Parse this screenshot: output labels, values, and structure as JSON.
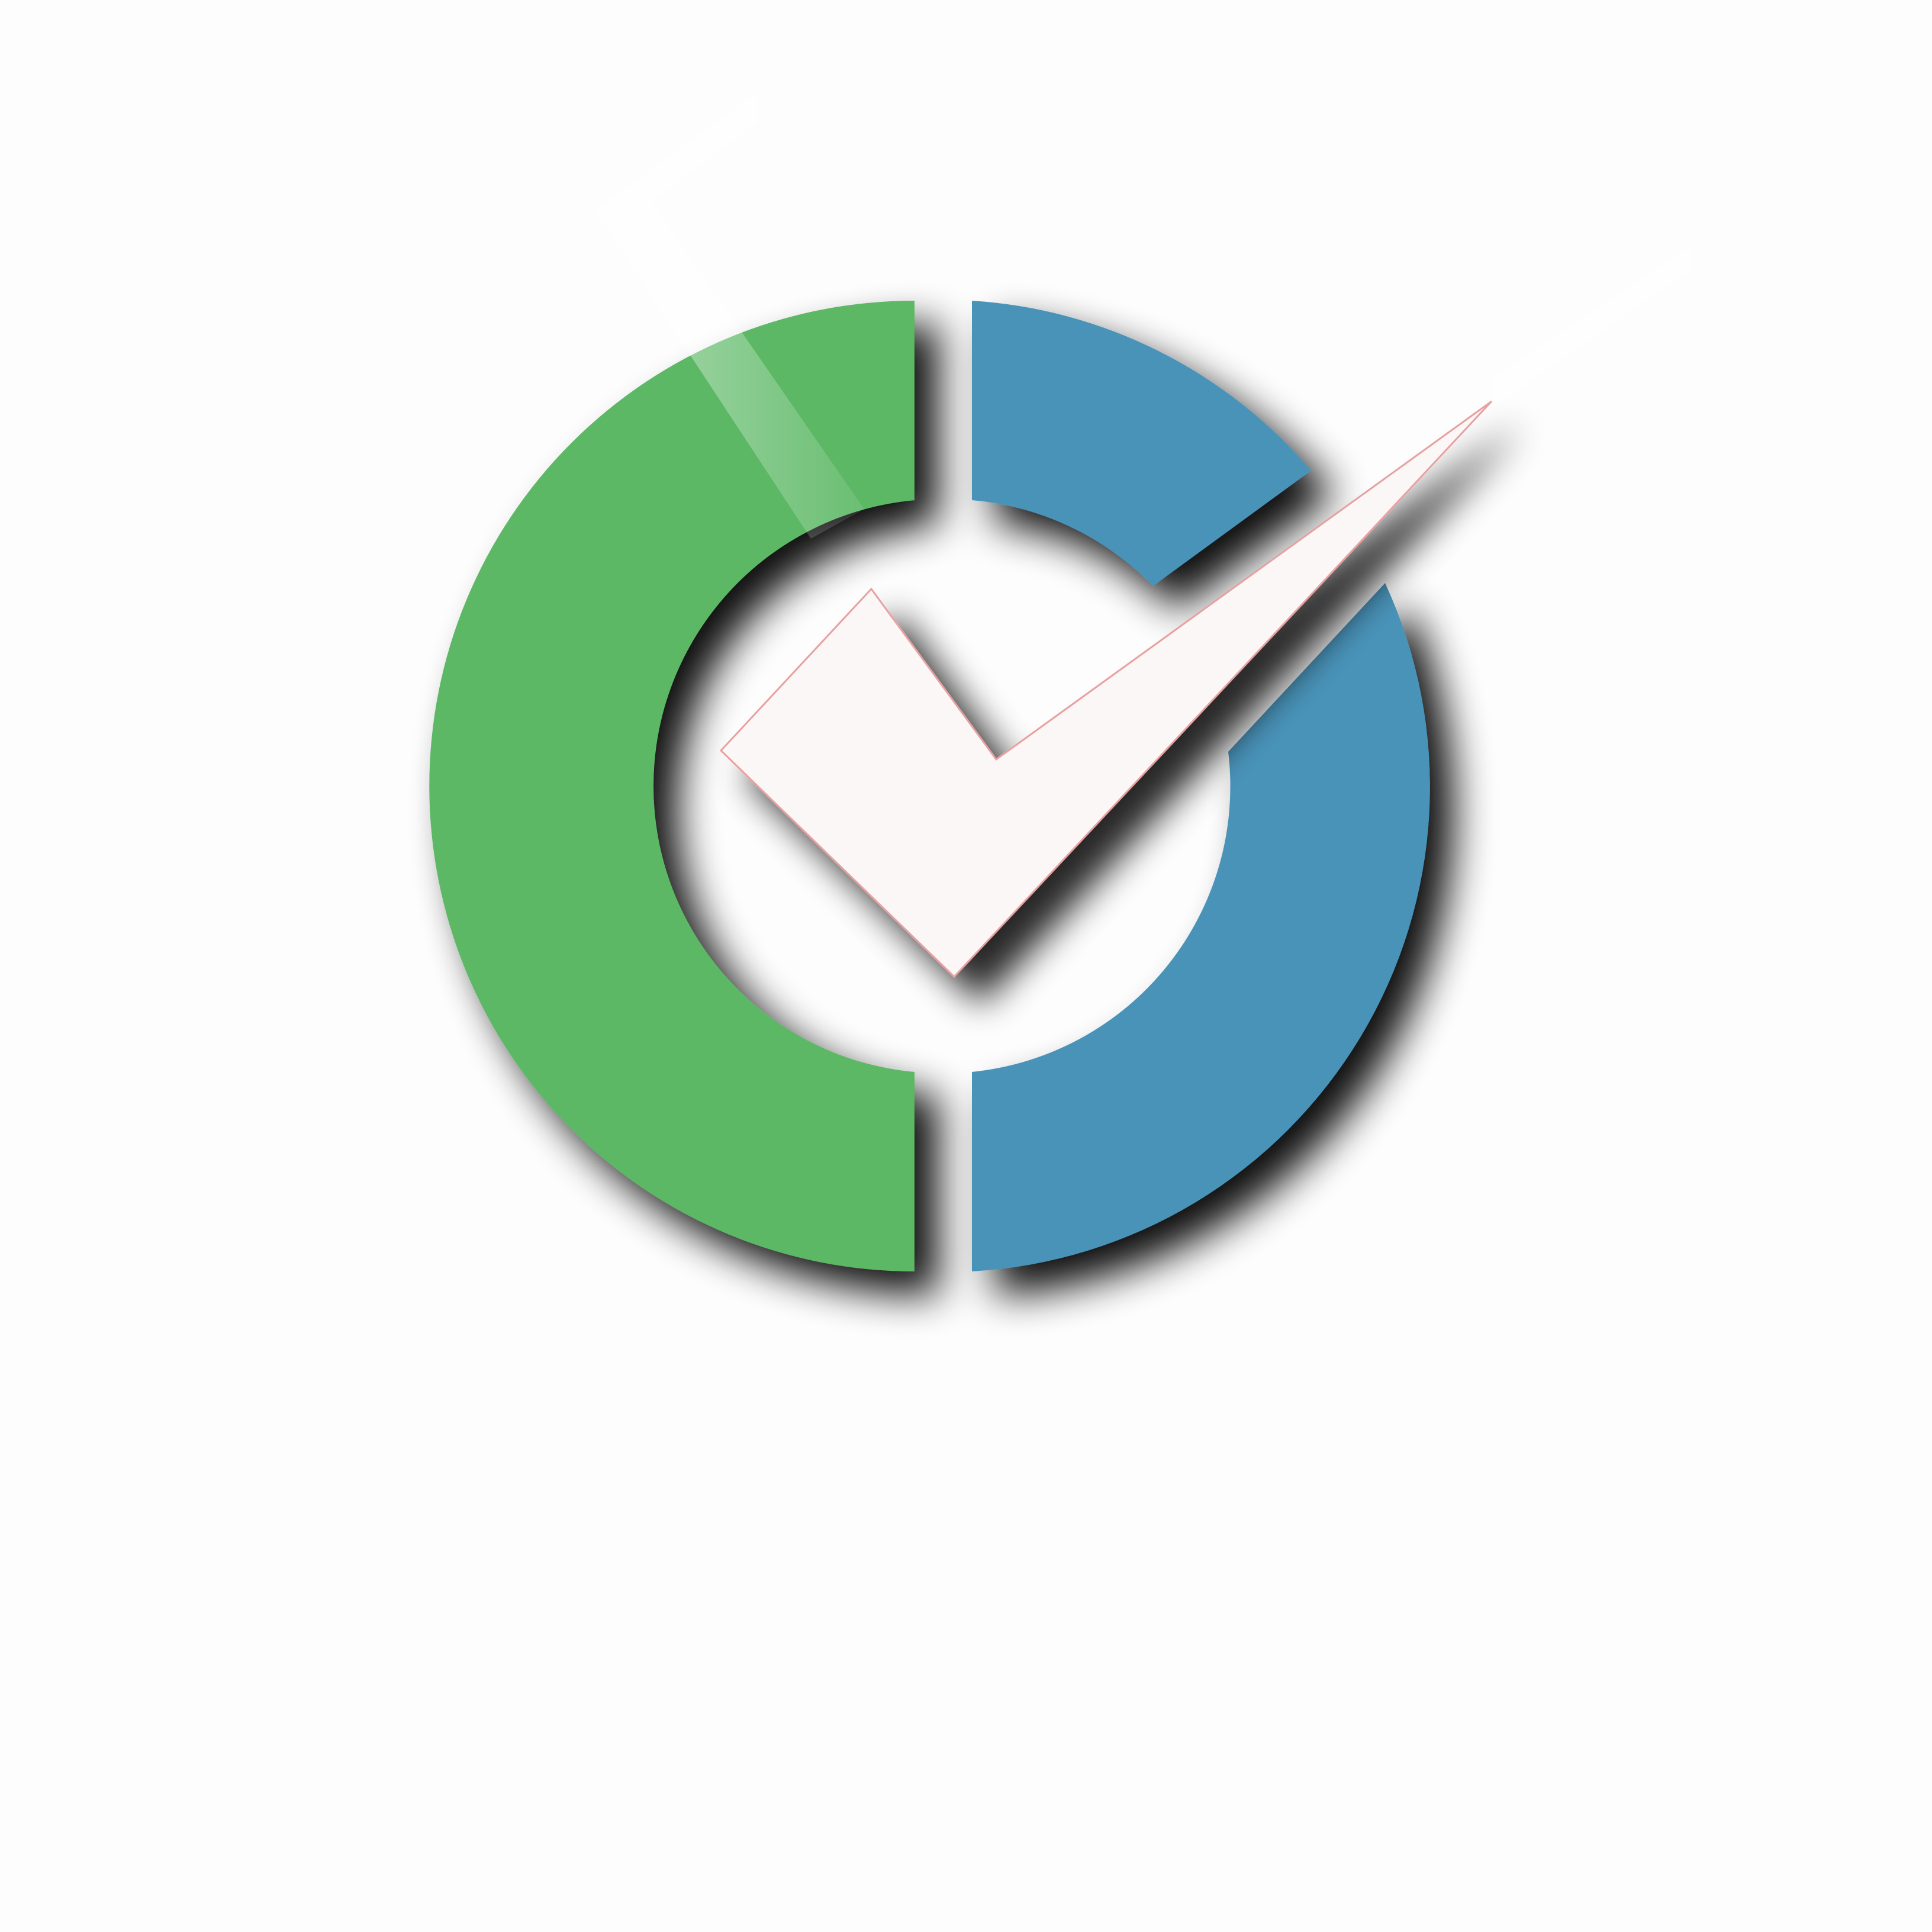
{
  "logo": {
    "name": "check-circle-logo",
    "colors": {
      "background": "#fdfdfd",
      "left_ring": "#5bb865",
      "right_ring": "#4a93b9",
      "checkmark": "#fcf7f7",
      "checkmark_outline": "#e8a0a0",
      "shadow": "#000000"
    },
    "icons": [
      "green-ring-half-icon",
      "blue-ring-segment-icon",
      "checkmark-icon"
    ]
  }
}
